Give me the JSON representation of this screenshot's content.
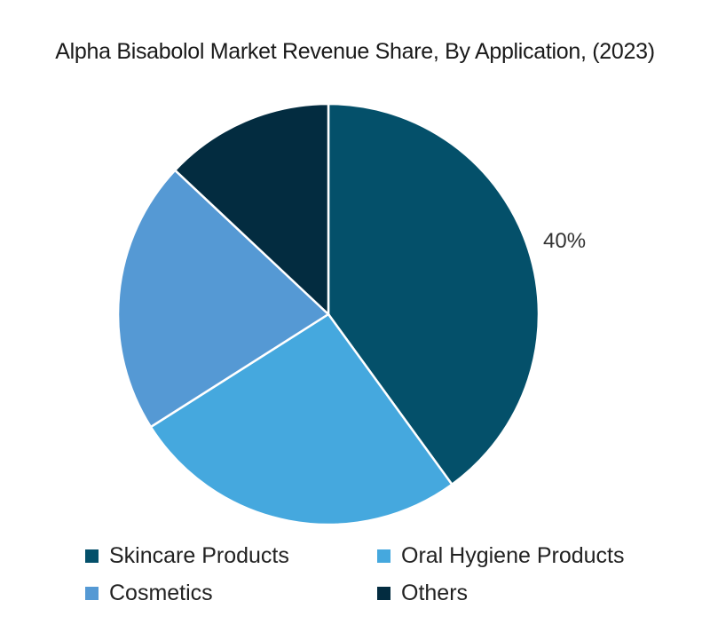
{
  "chart_data": {
    "type": "pie",
    "title": "Alpha Bisabolol Market Revenue Share, By Application, (2023)",
    "categories": [
      "Skincare Products",
      "Oral Hygiene Products",
      "Cosmetics",
      "Others"
    ],
    "values": [
      40,
      26,
      21,
      13
    ],
    "colors": [
      "#04506a",
      "#45a8de",
      "#5599d4",
      "#032c40"
    ],
    "data_labels": [
      {
        "category": "Skincare Products",
        "label": "40%"
      }
    ],
    "legend_position": "bottom",
    "start_angle": "12 o'clock, clockwise"
  },
  "title": "Alpha Bisabolol Market Revenue Share, By Application, (2023)",
  "label_skincare": "40%",
  "legend": [
    {
      "label": "Skincare Products",
      "color": "#04506a"
    },
    {
      "label": "Oral Hygiene Products",
      "color": "#45a8de"
    },
    {
      "label": "Cosmetics",
      "color": "#5599d4"
    },
    {
      "label": "Others",
      "color": "#032c40"
    }
  ]
}
